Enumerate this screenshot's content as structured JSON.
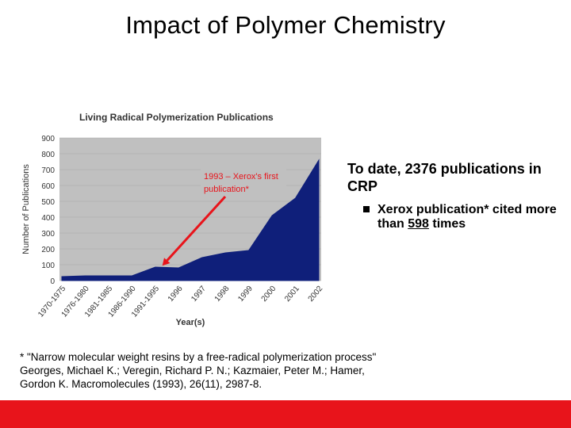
{
  "slide": {
    "title": "Impact of Polymer Chemistry",
    "side_text": "To date, 2376 publications in CRP",
    "bullet_prefix": "Xerox publication* cited more than ",
    "bullet_number": "598",
    "bullet_suffix": " times",
    "footnote": "*  \"Narrow molecular weight resins by a free-radical polymerization process\" Georges, Michael K.; Veregin, Richard P. N.; Kazmaier, Peter M.; Hamer, Gordon K. Macromolecules (1993), 26(11), 2987-8.",
    "colors": {
      "footer_bar": "#e8141b",
      "area_fill": "#0f1f7a",
      "plot_bg": "#c0c0c0",
      "arrow": "#e8141b"
    }
  },
  "chart_data": {
    "type": "area",
    "title": "Living Radical Polymerization Publications",
    "xlabel": "Year(s)",
    "ylabel": "Number of Publications",
    "categories": [
      "1970-1975",
      "1976-1980",
      "1981-1985",
      "1986-1990",
      "1991-1995",
      "1996",
      "1997",
      "1998",
      "1999",
      "2000",
      "2001",
      "2002"
    ],
    "yticks": [
      "0",
      "100",
      "200",
      "300",
      "400",
      "500",
      "600",
      "700",
      "800",
      "900"
    ],
    "ylim": [
      0,
      900
    ],
    "series": [
      {
        "values": [
          25,
          30,
          30,
          30,
          85,
          80,
          145,
          175,
          190,
          410,
          520,
          760
        ]
      }
    ],
    "annotation": {
      "text_line1": "1993 – Xerox's first",
      "text_line2": "publication*",
      "points_to_category_position": 4.3
    }
  }
}
